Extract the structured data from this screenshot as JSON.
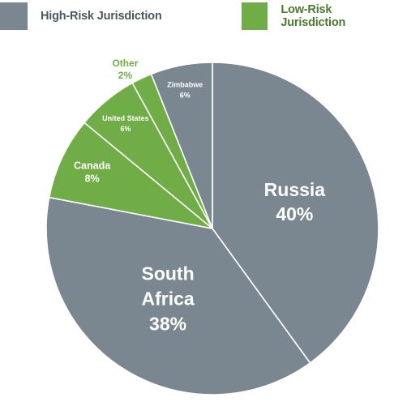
{
  "legend": [
    {
      "label": "High-Risk Jurisdiction",
      "color": "#7a8791"
    },
    {
      "label": "Low-Risk Jurisdiction",
      "color": "#70ad47"
    }
  ],
  "chart_data": {
    "type": "pie",
    "start_angle_deg": 0,
    "direction": "clockwise",
    "slices": [
      {
        "name": "Russia",
        "value": 40,
        "label_lines": [
          "Russia",
          "40%"
        ],
        "group": "High-Risk Jurisdiction",
        "color": "#7a8791"
      },
      {
        "name": "South Africa",
        "value": 38,
        "label_lines": [
          "South",
          "Africa",
          "38%"
        ],
        "group": "High-Risk Jurisdiction",
        "color": "#7a8791"
      },
      {
        "name": "Canada",
        "value": 8,
        "label_lines": [
          "Canada",
          "8%"
        ],
        "group": "Low-Risk Jurisdiction",
        "color": "#70ad47"
      },
      {
        "name": "United States",
        "value": 6,
        "label_lines": [
          "United States",
          "6%"
        ],
        "group": "Low-Risk Jurisdiction",
        "color": "#70ad47"
      },
      {
        "name": "Other",
        "value": 2,
        "label_lines": [
          "Other",
          "2%"
        ],
        "group": "Low-Risk Jurisdiction",
        "color": "#70ad47"
      },
      {
        "name": "Zimbabwe",
        "value": 6,
        "label_lines": [
          "Zimbabwe",
          "6%"
        ],
        "group": "High-Risk Jurisdiction",
        "color": "#7a8791"
      }
    ]
  }
}
